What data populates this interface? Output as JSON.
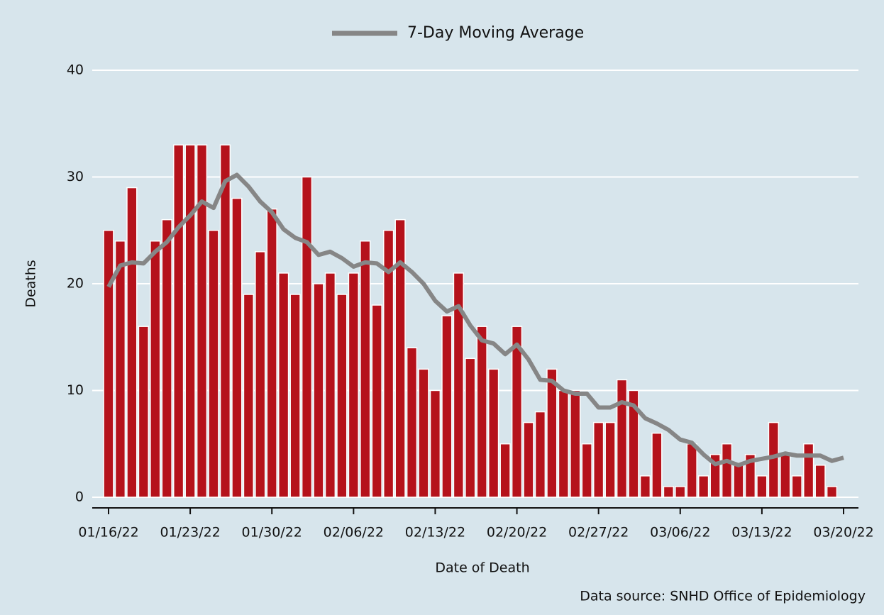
{
  "chart_data": {
    "type": "bar",
    "legend_label": "7-Day Moving Average",
    "x_label": "Date of Death",
    "y_label": "Deaths",
    "source": "Data source: SNHD Office of Epidemiology",
    "categories": [
      "01/16/22",
      null,
      null,
      null,
      null,
      null,
      null,
      "01/23/22",
      null,
      null,
      null,
      null,
      null,
      null,
      "01/30/22",
      null,
      null,
      null,
      null,
      null,
      null,
      "02/06/22",
      null,
      null,
      null,
      null,
      null,
      null,
      "02/13/22",
      null,
      null,
      null,
      null,
      null,
      null,
      "02/20/22",
      null,
      null,
      null,
      null,
      null,
      null,
      "02/27/22",
      null,
      null,
      null,
      null,
      null,
      null,
      "03/06/22",
      null,
      null,
      null,
      null,
      null,
      null,
      "03/13/22",
      null,
      null,
      null,
      null,
      null,
      null,
      "03/20/22"
    ],
    "series": [
      {
        "type": "bar",
        "color": "#b5121b",
        "values": [
          25,
          24,
          29,
          16,
          24,
          26,
          33,
          33,
          33,
          25,
          33,
          28,
          19,
          23,
          27,
          21,
          19,
          30,
          20,
          21,
          19,
          21,
          24,
          18,
          25,
          26,
          14,
          12,
          10,
          17,
          21,
          13,
          16,
          12,
          5,
          16,
          7,
          8,
          12,
          10,
          10,
          5,
          7,
          7,
          11,
          10,
          2,
          6,
          1,
          1,
          5,
          2,
          4,
          5,
          3,
          4,
          2,
          7,
          4,
          2,
          5,
          3,
          1,
          null
        ]
      },
      {
        "type": "line",
        "name": "7-Day Moving Average",
        "color": "#868686",
        "values": [
          19.7,
          21.7,
          22,
          21.9,
          23,
          23.9,
          25.3,
          26.4,
          27.7,
          27.1,
          29.6,
          30.2,
          29.1,
          27.7,
          26.7,
          25.1,
          24.3,
          23.9,
          22.7,
          23,
          22.4,
          21.6,
          22,
          21.9,
          21.1,
          22,
          21.1,
          20,
          18.4,
          17.4,
          17.9,
          16.1,
          14.7,
          14.4,
          13.4,
          14.3,
          12.9,
          11,
          10.9,
          10,
          9.7,
          9.7,
          8.4,
          8.4,
          8.9,
          8.6,
          7.4,
          6.9,
          6.3,
          5.4,
          5.1,
          4,
          3.1,
          3.4,
          3,
          3.4,
          3.6,
          3.8,
          4.1,
          3.9,
          3.9,
          3.9,
          3.4,
          3.7
        ]
      }
    ],
    "ylim": [
      -1,
      40
    ],
    "yticks": [
      0,
      10,
      20,
      30,
      40
    ],
    "grid": true
  }
}
